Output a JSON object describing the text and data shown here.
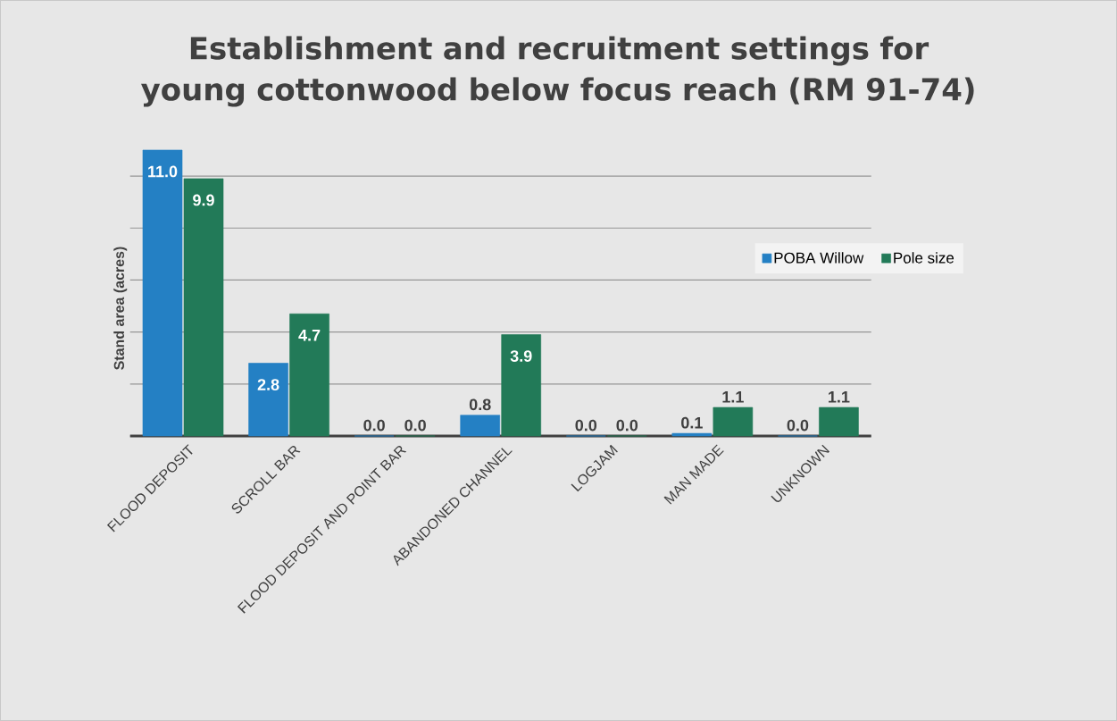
{
  "chart_data": {
    "type": "bar",
    "title": "Establishment and recruitment settings for young cottonwood below focus reach (RM 91-74)",
    "ylabel": "Stand area (acres)",
    "categories": [
      "FLOOD DEPOSIT",
      "SCROLL BAR",
      "FLOOD DEPOSIT AND POINT BAR",
      "ABANDONED CHANNEL",
      "LOGJAM",
      "MAN MADE",
      "UNKNOWN"
    ],
    "series": [
      {
        "name": "POBA Willow",
        "color": "#2480c4",
        "values": [
          11.0,
          2.8,
          0.0,
          0.8,
          0.0,
          0.1,
          0.0
        ],
        "value_labels": [
          "11.0",
          "2.8",
          "0.0",
          "0.8",
          "0.0",
          "0.1",
          "0.0"
        ]
      },
      {
        "name": "Pole size",
        "color": "#227a58",
        "values": [
          9.9,
          4.7,
          0.0,
          3.9,
          0.0,
          1.1,
          1.1
        ],
        "value_labels": [
          "9.9",
          "4.7",
          "0.0",
          "3.9",
          "0.0",
          "1.1",
          "1.1"
        ]
      }
    ],
    "ylim": [
      0,
      11
    ],
    "yticks": [
      {
        "value": 0,
        "label": null
      },
      {
        "value": 2,
        "label": null
      },
      {
        "value": 4,
        "label": null
      },
      {
        "value": 6,
        "label": null
      },
      {
        "value": 8,
        "label": null
      },
      {
        "value": 10,
        "label": null
      }
    ],
    "tick_labels": "x",
    "grid": "y",
    "legend": "right"
  }
}
